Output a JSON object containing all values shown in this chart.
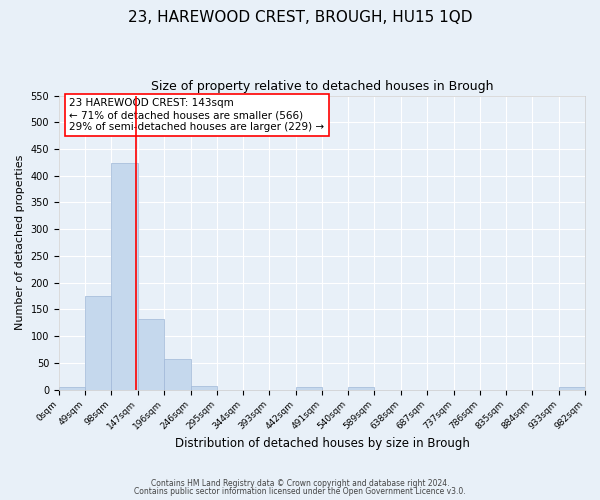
{
  "title": "23, HAREWOOD CREST, BROUGH, HU15 1QD",
  "subtitle": "Size of property relative to detached houses in Brough",
  "xlabel": "Distribution of detached houses by size in Brough",
  "ylabel": "Number of detached properties",
  "bin_edges": [
    0,
    49,
    98,
    147,
    196,
    246,
    295,
    344,
    393,
    442,
    491,
    540,
    589,
    638,
    687,
    737,
    786,
    835,
    884,
    933,
    982
  ],
  "bar_heights": [
    5,
    175,
    424,
    133,
    58,
    6,
    0,
    0,
    0,
    5,
    0,
    5,
    0,
    0,
    0,
    0,
    0,
    0,
    0,
    5
  ],
  "bar_color": "#c5d8ed",
  "bar_edgecolor": "#a0b8d8",
  "vline_x": 143,
  "vline_color": "red",
  "ylim": [
    0,
    550
  ],
  "yticks": [
    0,
    50,
    100,
    150,
    200,
    250,
    300,
    350,
    400,
    450,
    500,
    550
  ],
  "annotation_title": "23 HAREWOOD CREST: 143sqm",
  "annotation_line1": "← 71% of detached houses are smaller (566)",
  "annotation_line2": "29% of semi-detached houses are larger (229) →",
  "annotation_box_color": "red",
  "footnote1": "Contains HM Land Registry data © Crown copyright and database right 2024.",
  "footnote2": "Contains public sector information licensed under the Open Government Licence v3.0.",
  "bg_color": "#e8f0f8",
  "plot_bg_color": "#e8f0f8",
  "grid_color": "white",
  "title_fontsize": 11,
  "subtitle_fontsize": 9,
  "tick_label_fontsize": 6.5,
  "ylabel_fontsize": 8,
  "xlabel_fontsize": 8.5,
  "annotation_fontsize": 7.5,
  "footnote_fontsize": 5.5
}
